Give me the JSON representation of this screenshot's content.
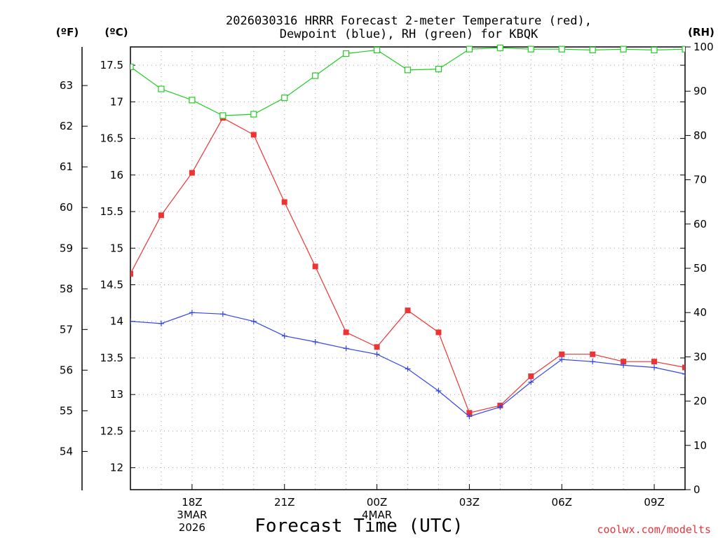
{
  "chart_data": {
    "type": "line",
    "title": "2026030316 HRRR Forecast 2-meter Temperature (red),",
    "subtitle": "Dewpoint (blue), RH (green) for KBQK",
    "xlabel": "Forecast Time (UTC)",
    "credit": "coolwx.com/modelts",
    "units": {
      "fahrenheit": "(ºF)",
      "celsius": "(ºC)",
      "rh": "(RH)"
    },
    "x_ticks": [
      {
        "hour": 2,
        "lines": [
          "18Z",
          "3MAR",
          "2026"
        ]
      },
      {
        "hour": 5,
        "lines": [
          "21Z"
        ]
      },
      {
        "hour": 8,
        "lines": [
          "00Z",
          "4MAR"
        ]
      },
      {
        "hour": 11,
        "lines": [
          "03Z"
        ]
      },
      {
        "hour": 14,
        "lines": [
          "06Z"
        ]
      },
      {
        "hour": 17,
        "lines": [
          "09Z"
        ]
      }
    ],
    "x": [
      0,
      1,
      2,
      3,
      4,
      5,
      6,
      7,
      8,
      9,
      10,
      11,
      12,
      13,
      14,
      15,
      16,
      17,
      18
    ],
    "xlim": [
      0,
      18
    ],
    "celsius_axis": {
      "ylim": [
        11.7,
        17.75
      ],
      "ticks": [
        "12",
        "12.5",
        "13",
        "13.5",
        "14",
        "14.5",
        "15",
        "15.5",
        "16",
        "16.5",
        "17",
        "17.5"
      ]
    },
    "fahrenheit_axis": {
      "ticks": [
        "54",
        "55",
        "56",
        "57",
        "58",
        "59",
        "60",
        "61",
        "62",
        "63"
      ]
    },
    "rh_axis": {
      "ylim": [
        0,
        100
      ],
      "ticks": [
        "0",
        "10",
        "20",
        "30",
        "40",
        "50",
        "60",
        "70",
        "80",
        "90",
        "100"
      ]
    },
    "series": [
      {
        "name": "Temperature",
        "axis": "celsius",
        "color": "#ee3333",
        "marker": "filled-square",
        "values": [
          14.65,
          15.45,
          16.03,
          16.78,
          16.55,
          15.63,
          14.75,
          13.85,
          13.65,
          14.15,
          13.85,
          12.75,
          12.85,
          13.25,
          13.55,
          13.55,
          13.45,
          13.45,
          13.37
        ]
      },
      {
        "name": "Dewpoint",
        "axis": "celsius",
        "color": "#3344ee",
        "marker": "plus",
        "values": [
          14.0,
          13.97,
          14.12,
          14.1,
          14.0,
          13.8,
          13.72,
          13.63,
          13.55,
          13.35,
          13.05,
          12.7,
          12.83,
          13.17,
          13.48,
          13.45,
          13.4,
          13.37,
          13.28
        ]
      },
      {
        "name": "RH",
        "axis": "rh",
        "color": "#22cc22",
        "marker": "open-square",
        "values": [
          95.5,
          90.5,
          88.0,
          84.5,
          84.8,
          88.5,
          93.5,
          98.5,
          99.3,
          94.8,
          95.0,
          99.5,
          99.8,
          99.5,
          99.5,
          99.3,
          99.5,
          99.3,
          99.5
        ]
      }
    ]
  }
}
